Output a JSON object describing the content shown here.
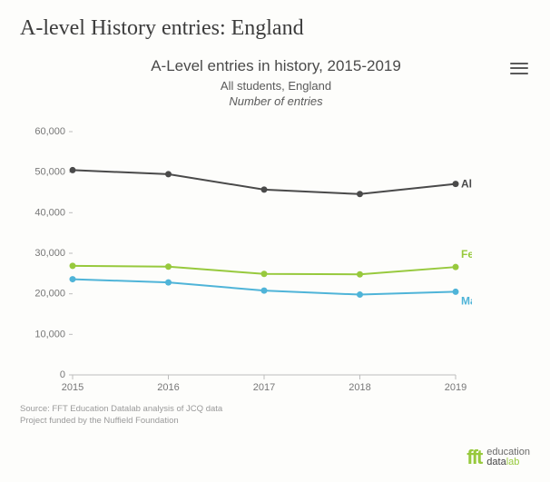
{
  "page": {
    "title": "A-level History entries: England"
  },
  "chart": {
    "type": "line",
    "title": "A-Level entries in history, 2015-2019",
    "subtitle1": "All students, England",
    "subtitle2": "Number of entries",
    "x_categories": [
      "2015",
      "2016",
      "2017",
      "2018",
      "2019"
    ],
    "y_axis": {
      "min": 0,
      "max": 60000,
      "step": 10000
    },
    "series": [
      {
        "name": "All students",
        "color": "#4a4a4a",
        "label_color": "#4a4a4a",
        "values": [
          50500,
          49500,
          45700,
          44600,
          47100
        ],
        "marker_radius": 3.5,
        "line_width": 2
      },
      {
        "name": "Female",
        "color": "#97c93d",
        "label_color": "#97c93d",
        "values": [
          26900,
          26700,
          24900,
          24800,
          26600
        ],
        "marker_radius": 3.5,
        "line_width": 2
      },
      {
        "name": "Male",
        "color": "#4fb4d8",
        "label_color": "#4fb4d8",
        "values": [
          23600,
          22800,
          20800,
          19800,
          20500
        ],
        "marker_radius": 3.5,
        "line_width": 2
      }
    ],
    "tick_color": "#bdbdbd",
    "tick_font_size": 11,
    "background_color": "#fdfdfb",
    "source_line1": "Source: FFT Education Datalab analysis of JCQ data",
    "source_line2": "Project funded by the Nuffield Foundation",
    "logo_fft": "fft",
    "logo_word1": "education",
    "logo_word2a": "data",
    "logo_word2b": "lab"
  }
}
